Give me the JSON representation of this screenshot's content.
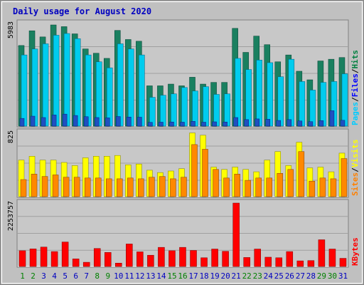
{
  "chart_data": {
    "type": "bar",
    "title": "Daily usage for August 2020",
    "categories": [
      "1",
      "2",
      "3",
      "4",
      "5",
      "6",
      "7",
      "8",
      "9",
      "10",
      "11",
      "12",
      "13",
      "14",
      "15",
      "16",
      "17",
      "18",
      "19",
      "20",
      "21",
      "22",
      "23",
      "24",
      "25",
      "26",
      "27",
      "28",
      "29",
      "30",
      "31"
    ],
    "weekend_days": [
      "1",
      "2",
      "8",
      "9",
      "15",
      "16",
      "22",
      "23",
      "29",
      "30"
    ],
    "panels": [
      {
        "name": "hits",
        "max_label": "5983",
        "ymax": 5983,
        "right_labels": [
          "Pages",
          "Files",
          "Hits"
        ],
        "right_label_colors": [
          "#00ccff",
          "#0000ff",
          "#008040"
        ],
        "series": [
          {
            "name": "Hits",
            "color": "#1a8060",
            "values": [
              4700,
              5560,
              5200,
              5900,
              5800,
              5380,
              4500,
              4250,
              3950,
              5580,
              5050,
              4950,
              2350,
              2350,
              2450,
              2350,
              2850,
              2450,
              2550,
              2550,
              5700,
              4300,
              5250,
              4750,
              3750,
              4150,
              3200,
              2700,
              3800,
              3900,
              4000
            ]
          },
          {
            "name": "Files",
            "color": "#2050c0",
            "values": [
              450,
              580,
              500,
              650,
              700,
              620,
              550,
              500,
              480,
              560,
              530,
              520,
              220,
              230,
              240,
              230,
              280,
              230,
              250,
              240,
              500,
              380,
              420,
              400,
              330,
              380,
              300,
              260,
              320,
              900,
              340
            ]
          },
          {
            "name": "Pages",
            "color": "#00ccee",
            "values": [
              4150,
              4500,
              4800,
              5300,
              5400,
              5100,
              4150,
              3750,
              3400,
              4800,
              4500,
              4150,
              1680,
              1800,
              1880,
              2250,
              2050,
              2300,
              1850,
              1880,
              3950,
              3300,
              3850,
              3700,
              2880,
              3900,
              2600,
              2100,
              2550,
              2600,
              3050
            ]
          }
        ]
      },
      {
        "name": "visits",
        "max_label": "825",
        "ymax": 825,
        "right_labels": [
          "Sites",
          "Visits"
        ],
        "right_label_colors": [
          "#ff8000",
          "#ffff00"
        ],
        "series": [
          {
            "name": "Visits",
            "color": "#ffff00",
            "values": [
              470,
              520,
              470,
              470,
              440,
              400,
              500,
              520,
              520,
              530,
              410,
              420,
              340,
              310,
              330,
              360,
              820,
              790,
              380,
              350,
              380,
              350,
              320,
              470,
              580,
              400,
              700,
              370,
              380,
              320,
              560
            ]
          },
          {
            "name": "Sites",
            "color": "#ff8800",
            "values": [
              220,
              290,
              260,
              280,
              250,
              250,
              240,
              240,
              230,
              230,
              240,
              230,
              250,
              260,
              230,
              250,
              670,
              610,
              350,
              240,
              290,
              210,
              240,
              240,
              300,
              350,
              580,
              200,
              240,
              230,
              490
            ]
          }
        ]
      },
      {
        "name": "kbytes",
        "max_label": "2253757",
        "ymax": 2253757,
        "right_labels": [
          "KBytes"
        ],
        "right_label_colors": [
          "#ff0000"
        ],
        "series": [
          {
            "name": "KBytes",
            "color": "#ff0000",
            "values": [
              560000,
              625000,
              690000,
              530000,
              870000,
              270000,
              150000,
              640000,
              500000,
              120000,
              800000,
              520000,
              400000,
              680000,
              560000,
              680000,
              570000,
              310000,
              620000,
              540000,
              2253757,
              320000,
              620000,
              330000,
              310000,
              530000,
              200000,
              210000,
              950000,
              620000,
              290000
            ]
          }
        ]
      }
    ],
    "colors": {
      "frame_bg": "#c0c0c0",
      "plot_bg": "#c8c8c8",
      "title": "#0000c0",
      "weekday_label": "#0000c0",
      "weekend_label": "#008000",
      "axis_label": "#000000"
    }
  }
}
